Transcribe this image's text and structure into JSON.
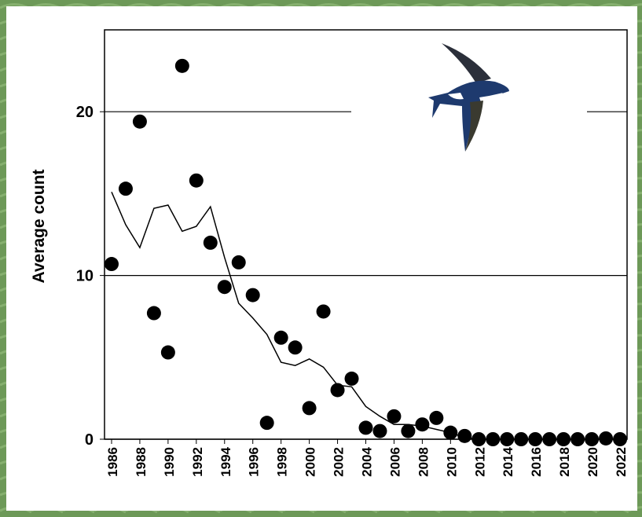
{
  "chart_data": {
    "type": "scatter",
    "y_label": "Average count",
    "x": [
      1986,
      1987,
      1988,
      1989,
      1990,
      1991,
      1992,
      1993,
      1994,
      1995,
      1996,
      1997,
      1998,
      1999,
      2000,
      2001,
      2002,
      2003,
      2004,
      2005,
      2006,
      2007,
      2008,
      2009,
      2010,
      2011,
      2012,
      2013,
      2014,
      2015,
      2016,
      2017,
      2018,
      2019,
      2020,
      2021,
      2022
    ],
    "series": [
      {
        "style": "points",
        "color": "#000000",
        "values": [
          10.7,
          15.3,
          19.4,
          7.7,
          5.3,
          22.8,
          15.8,
          12.0,
          9.3,
          10.8,
          8.8,
          1.0,
          6.2,
          5.6,
          1.9,
          7.8,
          3.0,
          3.7,
          0.7,
          0.5,
          1.4,
          0.5,
          0.9,
          1.3,
          0.4,
          0.2,
          0,
          0,
          0,
          0,
          0,
          0,
          0,
          0,
          0,
          0.05,
          0
        ]
      },
      {
        "style": "line",
        "color": "#000000",
        "values": [
          15.1,
          13.1,
          11.7,
          14.1,
          14.3,
          12.7,
          13.0,
          14.2,
          11.1,
          8.3,
          7.4,
          6.4,
          4.7,
          4.5,
          4.9,
          4.4,
          3.3,
          3.2,
          2.0,
          1.4,
          0.9,
          0.9,
          0.8,
          0.6,
          0.4,
          0.1,
          0,
          0,
          0,
          0,
          0,
          0,
          0,
          0,
          0,
          0,
          0
        ]
      }
    ],
    "xlim": [
      1985.5,
      2022.5
    ],
    "ylim": [
      0,
      25
    ],
    "xticks": [
      1986,
      1988,
      1990,
      1992,
      1994,
      1996,
      1998,
      2000,
      2002,
      2004,
      2006,
      2008,
      2010,
      2012,
      2014,
      2016,
      2018,
      2020,
      2022
    ],
    "yticks": [
      0,
      10,
      20
    ],
    "grid": true
  }
}
